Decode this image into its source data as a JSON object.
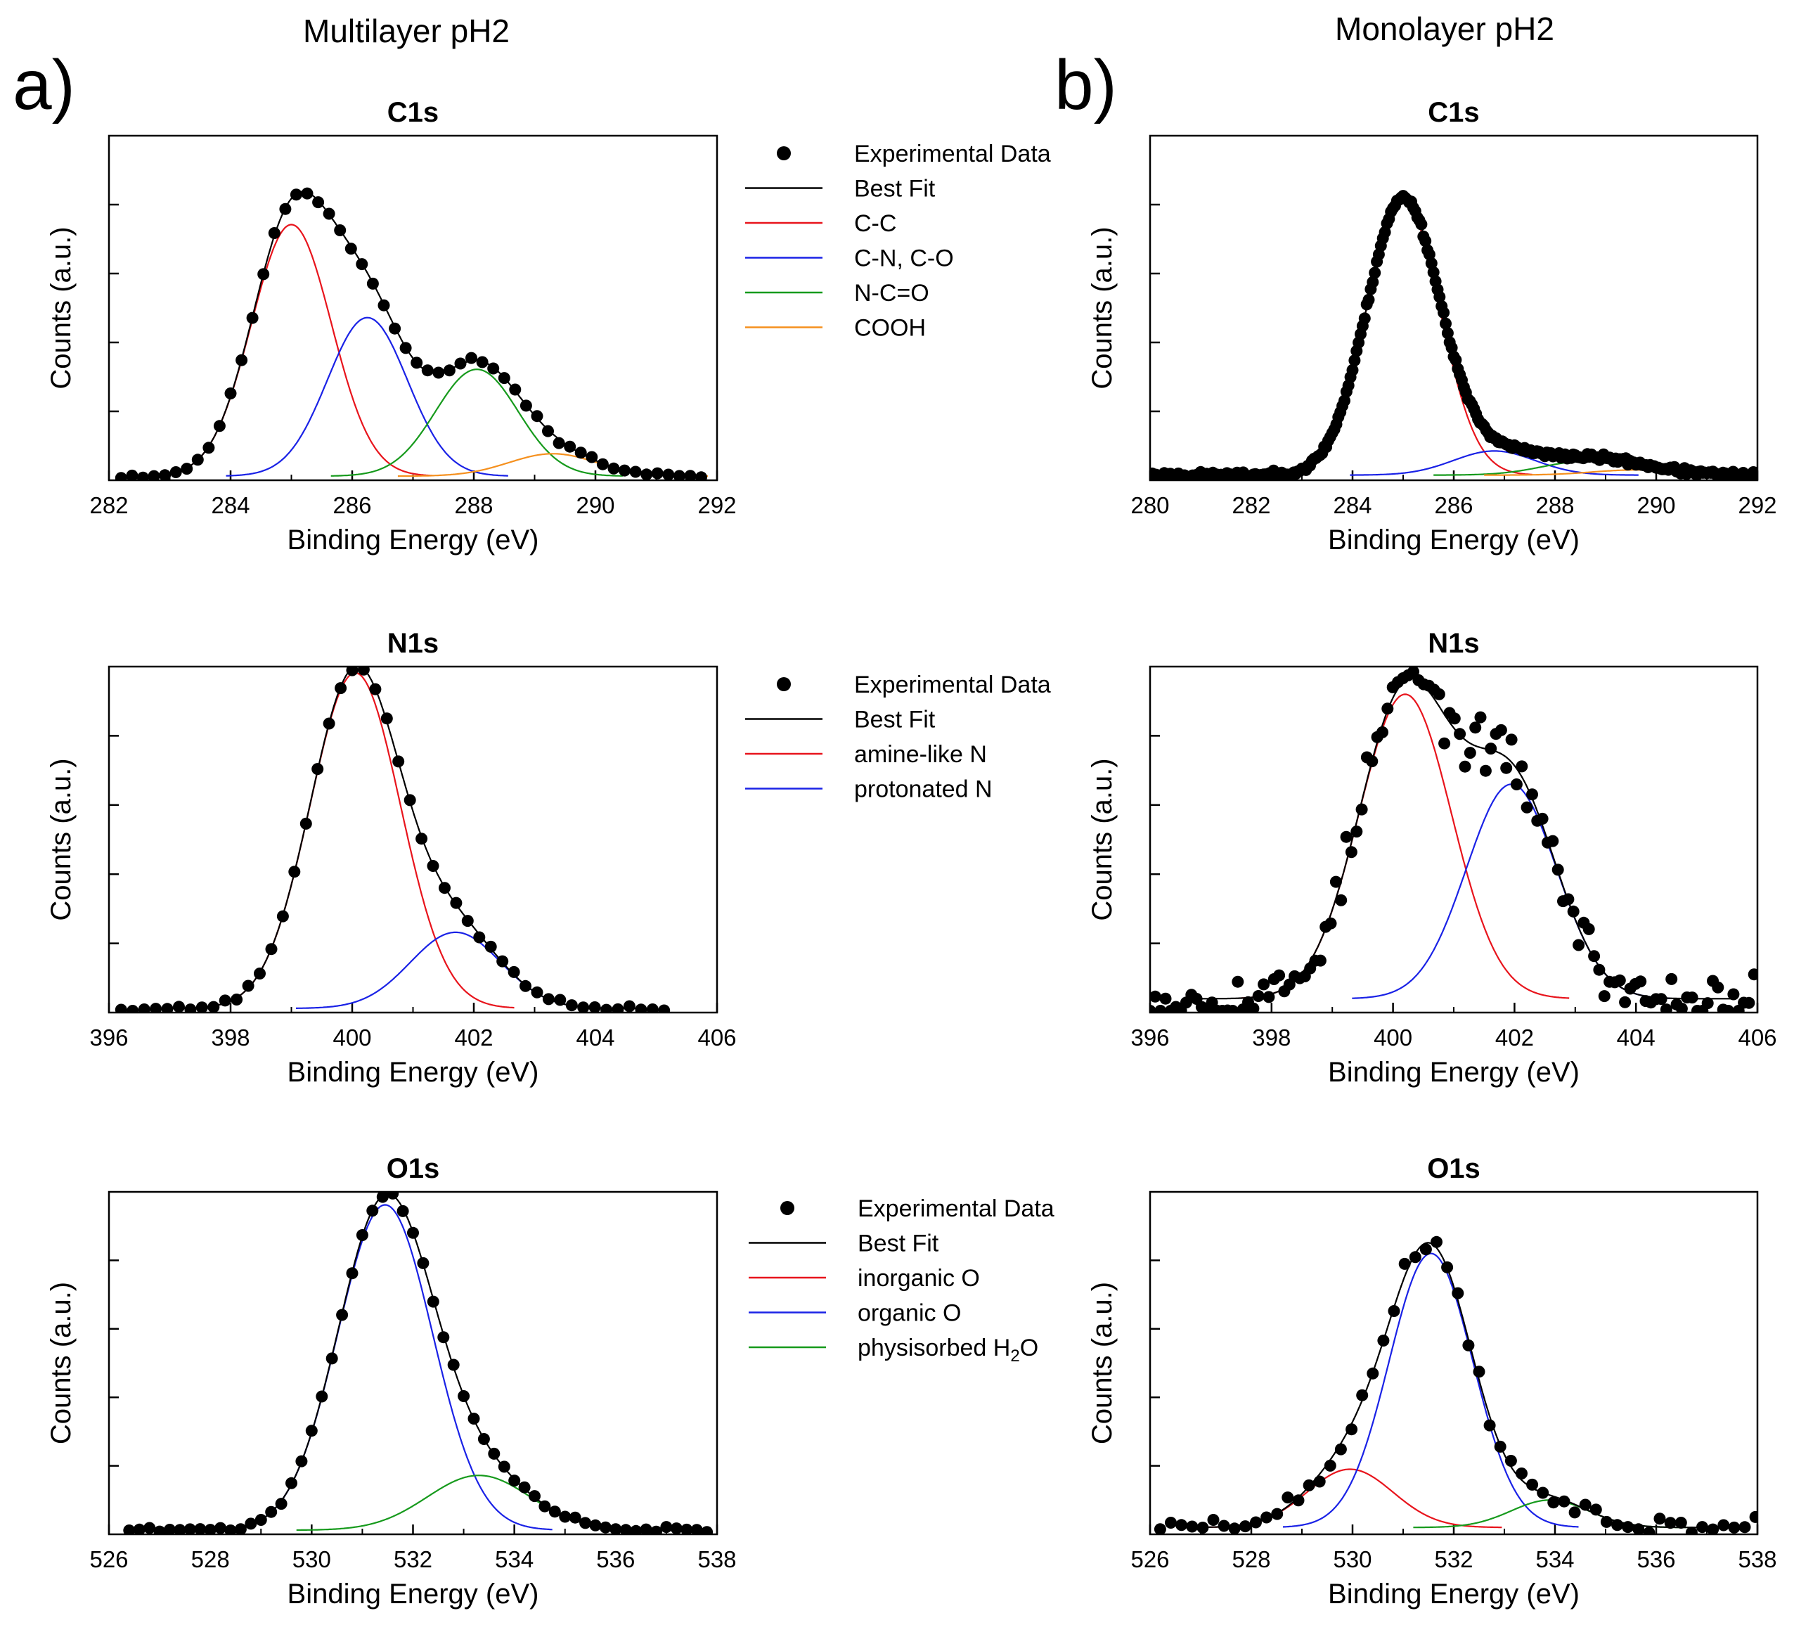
{
  "figure": {
    "column_titles": [
      "Multilayer pH2",
      "Monolayer pH2"
    ],
    "panel_letters": [
      "a)",
      "b)"
    ]
  },
  "colors": {
    "data": "#000000",
    "best_fit": "#000000",
    "red": "#e8141c",
    "blue": "#1a22e6",
    "green": "#169a1c",
    "orange": "#f5901e"
  },
  "legends": [
    {
      "items": [
        {
          "kind": "marker",
          "label": "Experimental Data"
        },
        {
          "kind": "line",
          "color": "#000000",
          "label": "Best Fit"
        },
        {
          "kind": "line",
          "color": "#e8141c",
          "label": "C-C"
        },
        {
          "kind": "line",
          "color": "#1a22e6",
          "label": "C-N, C-O"
        },
        {
          "kind": "line",
          "color": "#169a1c",
          "label": "N-C=O"
        },
        {
          "kind": "line",
          "color": "#f5901e",
          "label": "COOH"
        }
      ]
    },
    {
      "items": [
        {
          "kind": "marker",
          "label": "Experimental Data"
        },
        {
          "kind": "line",
          "color": "#000000",
          "label": "Best Fit"
        },
        {
          "kind": "line",
          "color": "#e8141c",
          "label": "amine-like N"
        },
        {
          "kind": "line",
          "color": "#1a22e6",
          "label": "protonated N"
        }
      ]
    },
    {
      "items": [
        {
          "kind": "marker",
          "label": "Experimental Data"
        },
        {
          "kind": "line",
          "color": "#000000",
          "label": "Best Fit"
        },
        {
          "kind": "line",
          "color": "#e8141c",
          "label": "inorganic O"
        },
        {
          "kind": "line",
          "color": "#1a22e6",
          "label": "organic O"
        },
        {
          "kind": "line",
          "color": "#169a1c",
          "label": "physisorbed H",
          "sub": "2",
          "tail": "O"
        }
      ]
    }
  ],
  "chart_data": [
    {
      "type": "scatter",
      "id": "multi-c1s",
      "title": "C1s",
      "xlabel": "Binding Energy (eV)",
      "ylabel": "Counts (a.u.)",
      "xlim": [
        282,
        292
      ],
      "ylim": [
        0,
        1.0
      ],
      "xticks": [
        282,
        284,
        286,
        288,
        290,
        292
      ],
      "baseline": 0.012,
      "noise": 0.006,
      "data_step": 0.18,
      "data_range": [
        282.2,
        291.9
      ],
      "seed": 11,
      "components": [
        {
          "name": "C-C",
          "color": "red",
          "center": 285.0,
          "height": 0.73,
          "fwhm": 1.55
        },
        {
          "name": "C-N, C-O",
          "color": "blue",
          "center": 286.25,
          "height": 0.46,
          "fwhm": 1.55
        },
        {
          "name": "N-C=O",
          "color": "green",
          "center": 288.05,
          "height": 0.31,
          "fwhm": 1.6
        },
        {
          "name": "COOH",
          "color": "orange",
          "center": 289.3,
          "height": 0.065,
          "fwhm": 1.7
        }
      ]
    },
    {
      "type": "scatter",
      "id": "mono-c1s",
      "title": "C1s",
      "xlabel": "Binding Energy (eV)",
      "ylabel": "Counts (a.u.)",
      "xlim": [
        280,
        292
      ],
      "ylim": [
        0,
        1.0
      ],
      "xticks": [
        280,
        282,
        284,
        286,
        288,
        290,
        292
      ],
      "baseline": 0.015,
      "noise": 0.006,
      "data_step": 0.04,
      "data_range": [
        280.0,
        292.0
      ],
      "seed": 23,
      "components": [
        {
          "name": "C-C",
          "color": "red",
          "center": 285.0,
          "height": 0.8,
          "fwhm": 1.7
        },
        {
          "name": "C-N, C-O",
          "color": "blue",
          "center": 286.8,
          "height": 0.07,
          "fwhm": 1.9
        },
        {
          "name": "N-C=O",
          "color": "green",
          "center": 288.6,
          "height": 0.04,
          "fwhm": 2.0
        },
        {
          "name": "COOH",
          "color": "orange",
          "center": 289.6,
          "height": 0.015,
          "fwhm": 2.0
        }
      ]
    },
    {
      "type": "scatter",
      "id": "multi-n1s",
      "title": "N1s",
      "xlabel": "Binding Energy (eV)",
      "ylabel": "Counts (a.u.)",
      "xlim": [
        396,
        406
      ],
      "ylim": [
        0,
        1.0
      ],
      "xticks": [
        396,
        398,
        400,
        402,
        404,
        406
      ],
      "baseline": 0.012,
      "noise": 0.006,
      "data_step": 0.19,
      "data_range": [
        396.2,
        405.2
      ],
      "seed": 37,
      "components": [
        {
          "name": "amine-like N",
          "color": "red",
          "center": 400.05,
          "height": 0.97,
          "fwhm": 1.75
        },
        {
          "name": "protonated N",
          "color": "blue",
          "center": 401.7,
          "height": 0.22,
          "fwhm": 1.75
        }
      ]
    },
    {
      "type": "scatter",
      "id": "mono-n1s",
      "title": "N1s",
      "xlabel": "Binding Energy (eV)",
      "ylabel": "Counts (a.u.)",
      "xlim": [
        396,
        406
      ],
      "ylim": [
        0,
        1.0
      ],
      "xticks": [
        396,
        398,
        400,
        402,
        404,
        406
      ],
      "baseline": 0.04,
      "noise": 0.05,
      "data_step": 0.085,
      "data_range": [
        396.0,
        406.0
      ],
      "seed": 53,
      "components": [
        {
          "name": "amine-like N",
          "color": "red",
          "center": 400.2,
          "height": 0.88,
          "fwhm": 1.8
        },
        {
          "name": "protonated N",
          "color": "blue",
          "center": 401.95,
          "height": 0.62,
          "fwhm": 1.75
        }
      ]
    },
    {
      "type": "scatter",
      "id": "multi-o1s",
      "title": "O1s",
      "xlabel": "Binding Energy (eV)",
      "ylabel": "Counts (a.u.)",
      "xlim": [
        526,
        538
      ],
      "ylim": [
        0,
        1.0
      ],
      "xticks": [
        526,
        528,
        530,
        532,
        534,
        536,
        538
      ],
      "baseline": 0.012,
      "noise": 0.006,
      "data_step": 0.2,
      "data_range": [
        526.4,
        537.9
      ],
      "seed": 71,
      "components": [
        {
          "name": "organic O",
          "color": "blue",
          "center": 531.45,
          "height": 0.95,
          "fwhm": 2.2
        },
        {
          "name": "physisorbed H2O",
          "color": "green",
          "center": 533.3,
          "height": 0.16,
          "fwhm": 2.4
        }
      ]
    },
    {
      "type": "scatter",
      "id": "mono-o1s",
      "title": "O1s",
      "xlabel": "Binding Energy (eV)",
      "ylabel": "Counts (a.u.)",
      "xlim": [
        526,
        538
      ],
      "ylim": [
        0,
        1.0
      ],
      "xticks": [
        526,
        528,
        530,
        532,
        534,
        536,
        538
      ],
      "baseline": 0.02,
      "noise": 0.03,
      "data_step": 0.21,
      "data_range": [
        526.2,
        538.0
      ],
      "seed": 89,
      "components": [
        {
          "name": "inorganic O",
          "color": "red",
          "center": 529.95,
          "height": 0.17,
          "fwhm": 2.0
        },
        {
          "name": "organic O",
          "color": "blue",
          "center": 531.55,
          "height": 0.8,
          "fwhm": 1.95
        },
        {
          "name": "physisorbed H2O",
          "color": "green",
          "center": 533.9,
          "height": 0.08,
          "fwhm": 1.8
        }
      ]
    }
  ]
}
